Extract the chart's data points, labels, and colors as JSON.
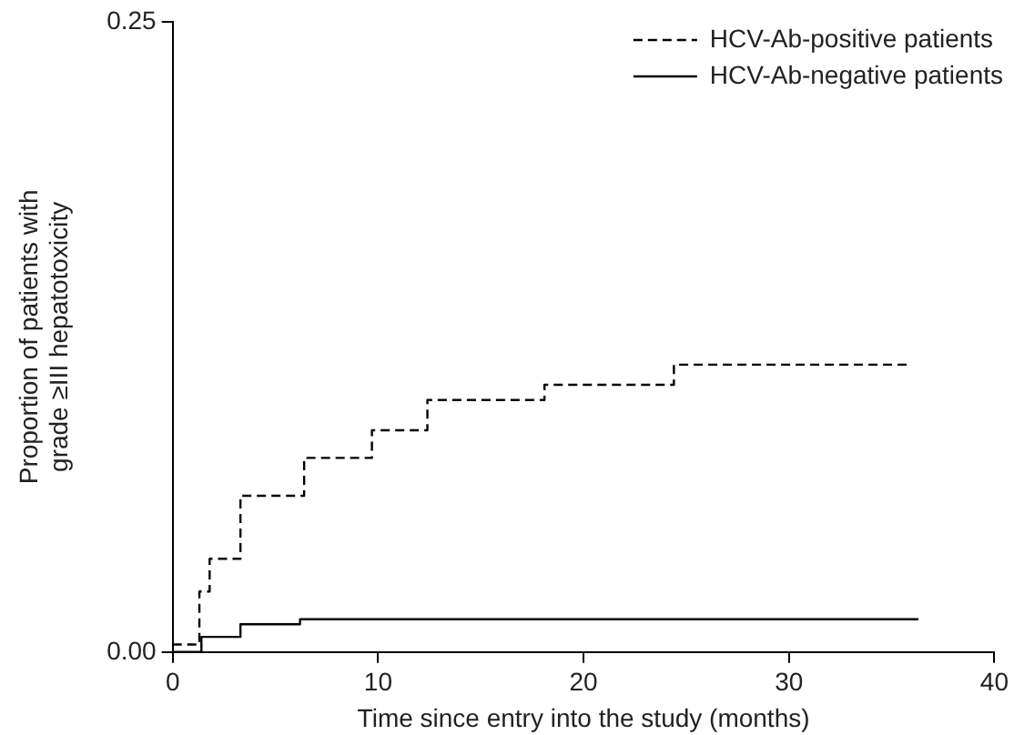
{
  "chart_data": {
    "type": "step",
    "xlabel": "Time since entry into the study (months)",
    "ylabel": "Proportion of patients with\ngrade ≥III hepatotoxicity",
    "xlim": [
      0,
      40
    ],
    "xticks": [
      0,
      10,
      20,
      30,
      40
    ],
    "ylim": [
      0,
      0.25
    ],
    "yticks": [
      {
        "value": 0,
        "label": "0.00"
      },
      0.25
    ],
    "grid": false,
    "legend": "top right",
    "marker": "none",
    "series": [
      {
        "name": "HCV-Ab-positive patients",
        "color": "#000000",
        "line_style": "dashed",
        "x": [
          0,
          1.3,
          1.8,
          3.3,
          6.4,
          9.7,
          12.4,
          18.1,
          24.4,
          35.8
        ],
        "values": [
          0.003,
          0.024,
          0.037,
          0.062,
          0.077,
          0.088,
          0.1,
          0.106,
          0.114,
          0.114
        ]
      },
      {
        "name": "HCV-Ab-negative patients",
        "color": "#000000",
        "line_style": "solid",
        "x": [
          0,
          1.4,
          3.3,
          6.2,
          36.3
        ],
        "values": [
          0,
          0.006,
          0.011,
          0.013,
          0.013
        ]
      }
    ]
  }
}
